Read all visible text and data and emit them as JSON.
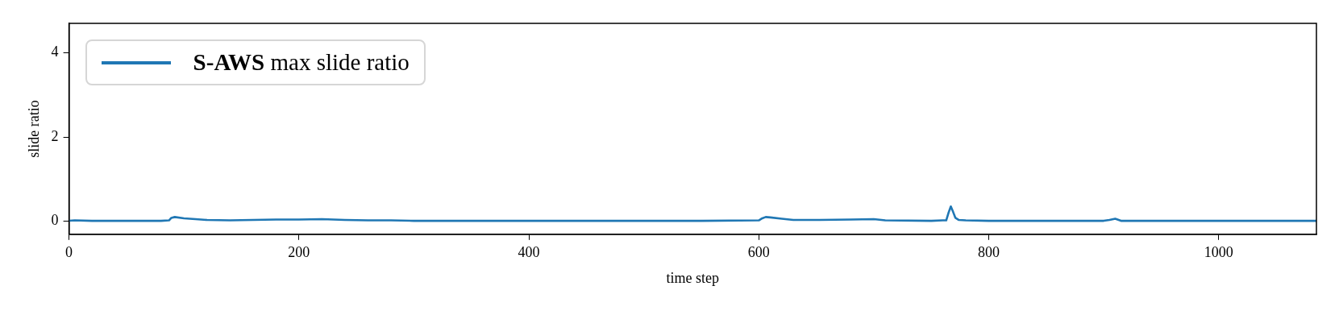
{
  "chart_data": {
    "type": "line",
    "xlabel": "time step",
    "ylabel": "slide ratio",
    "xlim": [
      0,
      1085
    ],
    "ylim": [
      -0.31,
      4.7
    ],
    "xticks": [
      0,
      200,
      400,
      600,
      800,
      1000
    ],
    "yticks": [
      0,
      2,
      4
    ],
    "grid": false,
    "legend": "top left",
    "marker": "none",
    "line_style": "solid",
    "series": [
      {
        "name": "S-AWS max slide ratio",
        "color": "#1f77b4",
        "x": [
          0,
          5,
          20,
          40,
          60,
          80,
          87,
          89,
          92,
          100,
          110,
          120,
          140,
          160,
          180,
          200,
          220,
          240,
          260,
          280,
          300,
          350,
          400,
          450,
          500,
          550,
          600,
          603,
          606,
          610,
          620,
          630,
          650,
          680,
          700,
          710,
          750,
          760,
          763,
          765,
          767,
          769,
          771,
          774,
          780,
          800,
          850,
          900,
          905,
          910,
          915,
          950,
          1000,
          1050,
          1085
        ],
        "values": [
          0.01,
          0.02,
          0.01,
          0.01,
          0.01,
          0.01,
          0.02,
          0.08,
          0.1,
          0.07,
          0.05,
          0.03,
          0.02,
          0.03,
          0.04,
          0.04,
          0.05,
          0.03,
          0.02,
          0.02,
          0.01,
          0.01,
          0.01,
          0.01,
          0.01,
          0.01,
          0.02,
          0.07,
          0.1,
          0.09,
          0.06,
          0.03,
          0.03,
          0.04,
          0.05,
          0.02,
          0.01,
          0.02,
          0.02,
          0.2,
          0.35,
          0.22,
          0.08,
          0.03,
          0.02,
          0.01,
          0.01,
          0.01,
          0.03,
          0.06,
          0.01,
          0.01,
          0.01,
          0.01,
          0.01
        ]
      }
    ]
  }
}
